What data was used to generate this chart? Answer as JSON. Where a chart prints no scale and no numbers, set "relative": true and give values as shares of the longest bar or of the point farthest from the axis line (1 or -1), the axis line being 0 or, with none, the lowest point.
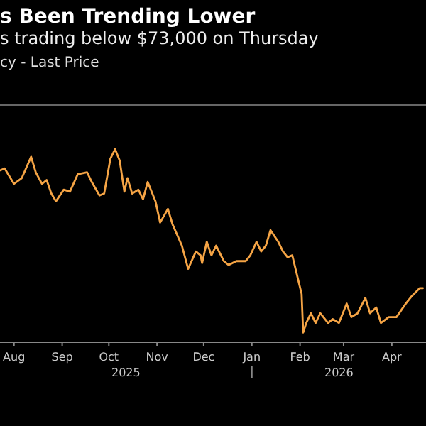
{
  "chart_data": {
    "type": "line",
    "title": "s Been Trending Lower",
    "subtitle": "s trading below $73,000 on Thursday",
    "relative": true,
    "legend": "top left",
    "xlim": [
      "2025-07-23",
      "2026-04-23"
    ],
    "xticks": [
      {
        "value": "2025-08-01",
        "label": "Aug"
      },
      {
        "value": "2025-09-01",
        "label": "Sep"
      },
      {
        "value": "2025-10-01",
        "label": "Oct"
      },
      {
        "value": "2025-11-01",
        "label": "Nov"
      },
      {
        "value": "2025-12-01",
        "label": "Dec"
      },
      {
        "value": "2026-01-01",
        "label": "Jan"
      },
      {
        "value": "2026-02-01",
        "label": "Feb"
      },
      {
        "value": "2026-03-01",
        "label": "Mar"
      },
      {
        "value": "2026-04-01",
        "label": "Apr"
      }
    ],
    "annotations": [
      "2025",
      "2026"
    ],
    "x": [
      "2025-07-23",
      "2025-07-26",
      "2025-08-01",
      "2025-08-06",
      "2025-08-12",
      "2025-08-15",
      "2025-08-19",
      "2025-08-22",
      "2025-08-25",
      "2025-08-28",
      "2025-09-02",
      "2025-09-06",
      "2025-09-11",
      "2025-09-17",
      "2025-09-20",
      "2025-09-25",
      "2025-09-28",
      "2025-10-02",
      "2025-10-05",
      "2025-10-08",
      "2025-10-11",
      "2025-10-13",
      "2025-10-16",
      "2025-10-20",
      "2025-10-23",
      "2025-10-26",
      "2025-10-31",
      "2025-11-03",
      "2025-11-08",
      "2025-11-11",
      "2025-11-17",
      "2025-11-21",
      "2025-11-26",
      "2025-11-29",
      "2025-11-30",
      "2025-12-03",
      "2025-12-06",
      "2025-12-09",
      "2025-12-14",
      "2025-12-17",
      "2025-12-22",
      "2025-12-28",
      "2025-12-31",
      "2026-01-04",
      "2026-01-07",
      "2026-01-10",
      "2026-01-13",
      "2026-01-18",
      "2026-01-21",
      "2026-01-24",
      "2026-01-27",
      "2026-01-30",
      "2026-02-02",
      "2026-02-03",
      "2026-02-05",
      "2026-02-08",
      "2026-02-11",
      "2026-02-14",
      "2026-02-19",
      "2026-02-22",
      "2026-02-26",
      "2026-03-03",
      "2026-03-06",
      "2026-03-10",
      "2026-03-15",
      "2026-03-18",
      "2026-03-22",
      "2026-03-25",
      "2026-03-30",
      "2026-04-04",
      "2026-04-10",
      "2026-04-14",
      "2026-04-19",
      "2026-04-21"
    ],
    "series": [
      {
        "name": "cy - Last Price",
        "color": "#f5a445",
        "values": [
          0.89,
          0.9,
          0.82,
          0.85,
          0.96,
          0.88,
          0.82,
          0.84,
          0.77,
          0.73,
          0.79,
          0.78,
          0.87,
          0.88,
          0.83,
          0.76,
          0.77,
          0.95,
          1,
          0.94,
          0.78,
          0.85,
          0.77,
          0.79,
          0.74,
          0.83,
          0.73,
          0.62,
          0.69,
          0.61,
          0.5,
          0.38,
          0.47,
          0.45,
          0.41,
          0.52,
          0.45,
          0.5,
          0.42,
          0.4,
          0.42,
          0.42,
          0.45,
          0.52,
          0.47,
          0.5,
          0.58,
          0.52,
          0.47,
          0.44,
          0.45,
          0.35,
          0.25,
          0.05,
          0.1,
          0.15,
          0.1,
          0.15,
          0.1,
          0.12,
          0.1,
          0.2,
          0.13,
          0.15,
          0.23,
          0.15,
          0.18,
          0.1,
          0.13,
          0.13,
          0.2,
          0.24,
          0.28,
          0.28
        ]
      }
    ]
  }
}
